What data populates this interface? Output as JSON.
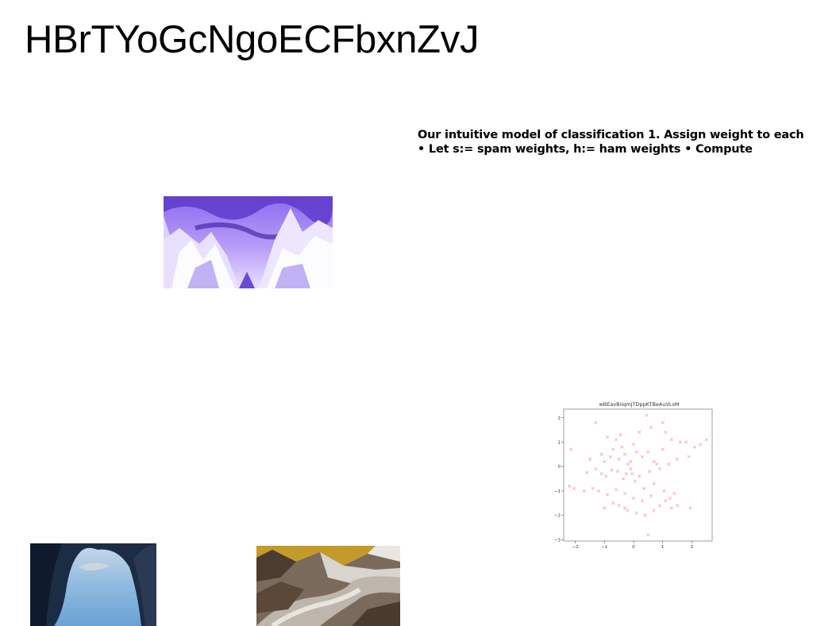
{
  "heading": {
    "title": "HBrTYoGcNgoECFbxnZvJ"
  },
  "slide": {
    "text": "Our intuitive model of classification 1. Assign weight to each • Let s:= spam weights, h:= ham weights • Compute"
  },
  "images": [
    {
      "name": "purple-forest-photo",
      "subject": "inverted purple snowy forest"
    },
    {
      "name": "sea-arch-photo",
      "subject": "sea cave arch"
    },
    {
      "name": "glacier-photo",
      "subject": "mountain glacier valley"
    }
  ],
  "chart_data": {
    "type": "scatter",
    "title": "wBEavBiiqmjTDppKTBeAuVLsM",
    "xlabel": "",
    "ylabel": "",
    "xlim": [
      -2.4,
      2.7
    ],
    "ylim": [
      -3.05,
      2.35
    ],
    "xticks": [
      -2,
      -1,
      0,
      1,
      2
    ],
    "yticks": [
      -3,
      -2,
      -1,
      0,
      1,
      2
    ],
    "xtick_labels": [
      "−2",
      "−1",
      "0",
      "1",
      "2"
    ],
    "ytick_labels": [
      "−3",
      "−2",
      "−1",
      "0",
      "1",
      "2"
    ],
    "marker": "x",
    "color": "#f4a6b8",
    "grid": false,
    "x": [
      -2.15,
      -1.3,
      -0.9,
      -0.6,
      -0.45,
      0.45,
      0.6,
      1.0,
      1.1,
      1.3,
      1.6,
      1.8,
      2.1,
      2.3,
      2.5,
      -2.05,
      -1.5,
      -1.1,
      -1.0,
      -0.8,
      -0.7,
      -0.5,
      -0.4,
      -0.3,
      -0.2,
      -0.1,
      0.0,
      0.1,
      0.2,
      0.3,
      0.5,
      0.7,
      0.8,
      1.0,
      1.2,
      1.5,
      1.9,
      -1.6,
      -1.3,
      -1.1,
      -0.95,
      -0.75,
      -0.55,
      -0.35,
      -0.25,
      -0.1,
      0.05,
      0.2,
      0.35,
      0.55,
      0.7,
      0.9,
      1.05,
      1.25,
      1.4,
      -2.2,
      -1.7,
      -1.4,
      -1.2,
      -0.9,
      -0.6,
      -0.3,
      0.0,
      0.3,
      0.6,
      0.9,
      1.1,
      1.5,
      1.95,
      -0.7,
      -0.5,
      -0.2,
      0.1,
      0.4,
      0.7,
      1.3,
      -1.0,
      -0.3,
      0.5,
      -0.05
    ],
    "y": [
      0.7,
      1.8,
      1.2,
      1.1,
      1.3,
      2.1,
      1.6,
      1.8,
      1.4,
      1.1,
      1.0,
      1.0,
      0.8,
      0.9,
      1.1,
      -0.9,
      0.3,
      0.5,
      0.2,
      0.4,
      0.7,
      0.3,
      0.8,
      0.5,
      0.1,
      0.2,
      0.9,
      0.6,
      1.4,
      0.4,
      0.6,
      0.2,
      0.1,
      0.7,
      0.1,
      0.3,
      0.4,
      -0.25,
      -0.1,
      -0.3,
      -0.4,
      -0.15,
      -0.2,
      -0.5,
      -0.3,
      -0.1,
      -0.6,
      -0.4,
      -0.9,
      -0.2,
      -0.7,
      -0.1,
      -1.0,
      -1.3,
      -1.1,
      -0.8,
      -1.0,
      -0.9,
      -1.0,
      -1.15,
      -0.95,
      -1.1,
      -1.3,
      -1.4,
      -1.2,
      -1.6,
      -1.4,
      -1.6,
      -1.7,
      -1.5,
      -1.6,
      -1.8,
      -1.9,
      -2.0,
      -1.8,
      -1.7,
      -1.7,
      -1.7,
      -2.8,
      -0.3
    ]
  }
}
